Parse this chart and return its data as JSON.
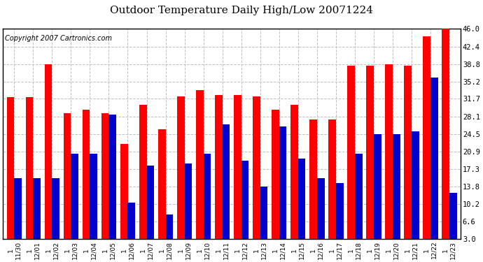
{
  "title": "Outdoor Temperature Daily High/Low 20071224",
  "copyright": "Copyright 2007 Cartronics.com",
  "categories": [
    "11/30",
    "12/01",
    "12/02",
    "12/03",
    "12/04",
    "12/05",
    "12/06",
    "12/07",
    "12/08",
    "12/09",
    "12/10",
    "12/11",
    "12/12",
    "12/13",
    "12/14",
    "12/15",
    "12/16",
    "12/17",
    "12/18",
    "12/19",
    "12/20",
    "12/21",
    "12/22",
    "12/23"
  ],
  "highs": [
    32.0,
    32.0,
    38.8,
    28.8,
    29.5,
    28.8,
    22.5,
    30.5,
    25.5,
    32.2,
    33.5,
    32.5,
    32.5,
    32.2,
    29.5,
    30.5,
    27.5,
    27.5,
    38.5,
    38.5,
    38.8,
    38.5,
    44.5,
    46.0
  ],
  "lows": [
    15.5,
    15.5,
    15.5,
    20.5,
    20.5,
    28.5,
    10.5,
    18.0,
    8.0,
    18.5,
    20.5,
    26.5,
    19.0,
    13.8,
    26.0,
    19.5,
    15.5,
    14.5,
    20.5,
    24.5,
    24.5,
    25.0,
    36.0,
    12.5
  ],
  "high_color": "#ff0000",
  "low_color": "#0000cc",
  "bg_color": "#ffffff",
  "plot_bg_color": "#ffffff",
  "grid_color": "#c0c0c0",
  "ylim_min": 3.0,
  "ylim_max": 46.0,
  "yticks": [
    3.0,
    6.6,
    10.2,
    13.8,
    17.3,
    20.9,
    24.5,
    28.1,
    31.7,
    35.2,
    38.8,
    42.4,
    46.0
  ],
  "title_fontsize": 11,
  "copyright_fontsize": 7,
  "bar_width": 0.4
}
